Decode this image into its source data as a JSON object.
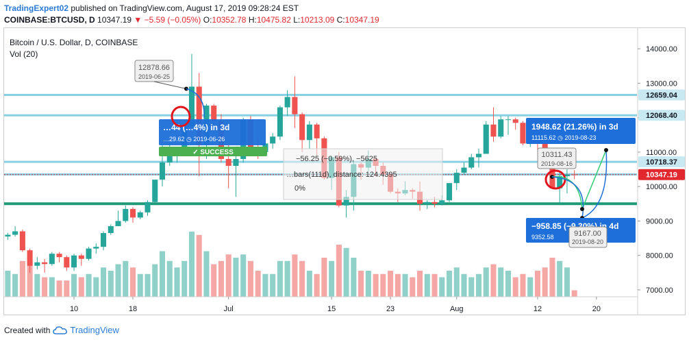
{
  "header": {
    "author": "TradingExpert02",
    "published_text": "published on TradingView.com, August 17, 2019 09:28:24 EST",
    "symbol": "COINBASE:BTCUSD, D",
    "last": "10347.19",
    "change": "−5.59 (−0.05%)",
    "o_label": "O:",
    "o": "10352.78",
    "h_label": "H:",
    "h": "10475.82",
    "l_label": "L:",
    "l": "10213.09",
    "c_label": "C:",
    "c": "10347.19"
  },
  "footer": {
    "created_with": "Created with",
    "brand": "TradingView"
  },
  "colors": {
    "up": "#26a69a",
    "down": "#ef5350",
    "vol_up": "#8fd1c9",
    "vol_down": "#f4a7a5",
    "hline": "#7ccbe0",
    "support": "#1f9a78",
    "label_blue": "#1e6fd9"
  },
  "chart_data": {
    "type": "candlestick",
    "title": "Bitcoin / U.S. Dollar, D, COINBASE",
    "volume_label": "Vol (20)",
    "ylim": [
      6800,
      14600
    ],
    "y_ticks": [
      "14000.00",
      "13000.00",
      "12000.00",
      "11000.00",
      "10000.00",
      "9000.00",
      "8000.00",
      "7000.00"
    ],
    "x_ticks": [
      {
        "label": "10",
        "date": "2019-06-10"
      },
      {
        "label": "18",
        "date": "2019-06-18"
      },
      {
        "label": "Jul",
        "date": "2019-07-01"
      },
      {
        "label": "15",
        "date": "2019-07-15"
      },
      {
        "label": "23",
        "date": "2019-07-23"
      },
      {
        "label": "Aug",
        "date": "2019-08-01"
      },
      {
        "label": "12",
        "date": "2019-08-12"
      },
      {
        "label": "20",
        "date": "2019-08-20"
      }
    ],
    "date_range": [
      "2019-06-01",
      "2019-08-25"
    ],
    "candles": [
      {
        "date": "2019-06-01",
        "o": 8550,
        "h": 8650,
        "l": 8450,
        "c": 8600
      },
      {
        "date": "2019-06-02",
        "o": 8600,
        "h": 8850,
        "l": 8550,
        "c": 8700
      },
      {
        "date": "2019-06-03",
        "o": 8700,
        "h": 8750,
        "l": 8100,
        "c": 8150
      },
      {
        "date": "2019-06-04",
        "o": 8150,
        "h": 8200,
        "l": 7500,
        "c": 7700
      },
      {
        "date": "2019-06-05",
        "o": 7700,
        "h": 7950,
        "l": 7600,
        "c": 7800
      },
      {
        "date": "2019-06-06",
        "o": 7800,
        "h": 7900,
        "l": 7500,
        "c": 7750
      },
      {
        "date": "2019-06-07",
        "o": 7750,
        "h": 8100,
        "l": 7700,
        "c": 8050
      },
      {
        "date": "2019-06-08",
        "o": 8050,
        "h": 8100,
        "l": 7800,
        "c": 7950
      },
      {
        "date": "2019-06-09",
        "o": 7950,
        "h": 8000,
        "l": 7550,
        "c": 7650
      },
      {
        "date": "2019-06-10",
        "o": 7650,
        "h": 8050,
        "l": 7550,
        "c": 8000
      },
      {
        "date": "2019-06-11",
        "o": 8000,
        "h": 8050,
        "l": 7700,
        "c": 7900
      },
      {
        "date": "2019-06-12",
        "o": 7900,
        "h": 8250,
        "l": 7850,
        "c": 8200
      },
      {
        "date": "2019-06-13",
        "o": 8200,
        "h": 8350,
        "l": 8050,
        "c": 8250
      },
      {
        "date": "2019-06-14",
        "o": 8250,
        "h": 8700,
        "l": 8150,
        "c": 8650
      },
      {
        "date": "2019-06-15",
        "o": 8650,
        "h": 8900,
        "l": 8600,
        "c": 8850
      },
      {
        "date": "2019-06-16",
        "o": 8850,
        "h": 9300,
        "l": 8850,
        "c": 9000
      },
      {
        "date": "2019-06-17",
        "o": 9000,
        "h": 9450,
        "l": 8950,
        "c": 9350
      },
      {
        "date": "2019-06-18",
        "o": 9350,
        "h": 9400,
        "l": 8950,
        "c": 9100
      },
      {
        "date": "2019-06-19",
        "o": 9100,
        "h": 9300,
        "l": 9050,
        "c": 9250
      },
      {
        "date": "2019-06-20",
        "o": 9250,
        "h": 9600,
        "l": 9150,
        "c": 9550
      },
      {
        "date": "2019-06-21",
        "o": 9550,
        "h": 10200,
        "l": 9500,
        "c": 10200
      },
      {
        "date": "2019-06-22",
        "o": 10200,
        "h": 11200,
        "l": 10000,
        "c": 10700
      },
      {
        "date": "2019-06-23",
        "o": 10700,
        "h": 11300,
        "l": 10600,
        "c": 10900
      },
      {
        "date": "2019-06-24",
        "o": 10900,
        "h": 11150,
        "l": 10700,
        "c": 11050
      },
      {
        "date": "2019-06-25",
        "o": 11050,
        "h": 11800,
        "l": 10950,
        "c": 11750
      },
      {
        "date": "2019-06-26",
        "o": 11750,
        "h": 13850,
        "l": 11700,
        "c": 12900
      },
      {
        "date": "2019-06-27",
        "o": 12900,
        "h": 13300,
        "l": 10300,
        "c": 11200
      },
      {
        "date": "2019-06-28",
        "o": 11200,
        "h": 12400,
        "l": 10800,
        "c": 12350
      },
      {
        "date": "2019-06-29",
        "o": 12350,
        "h": 12400,
        "l": 11300,
        "c": 11900
      },
      {
        "date": "2019-06-30",
        "o": 11900,
        "h": 12100,
        "l": 10700,
        "c": 10800
      },
      {
        "date": "2019-07-01",
        "o": 10800,
        "h": 11200,
        "l": 9950,
        "c": 10600
      },
      {
        "date": "2019-07-02",
        "o": 10600,
        "h": 10900,
        "l": 9700,
        "c": 10800
      },
      {
        "date": "2019-07-03",
        "o": 10800,
        "h": 12000,
        "l": 10700,
        "c": 11950
      },
      {
        "date": "2019-07-04",
        "o": 11950,
        "h": 12050,
        "l": 11050,
        "c": 11150
      },
      {
        "date": "2019-07-05",
        "o": 11150,
        "h": 11400,
        "l": 10800,
        "c": 11000
      },
      {
        "date": "2019-07-06",
        "o": 11000,
        "h": 11650,
        "l": 10900,
        "c": 11250
      },
      {
        "date": "2019-07-07",
        "o": 11250,
        "h": 11550,
        "l": 11100,
        "c": 11450
      },
      {
        "date": "2019-07-08",
        "o": 11450,
        "h": 12350,
        "l": 11350,
        "c": 12300
      },
      {
        "date": "2019-07-09",
        "o": 12300,
        "h": 12800,
        "l": 12050,
        "c": 12600
      },
      {
        "date": "2019-07-10",
        "o": 12600,
        "h": 13200,
        "l": 11700,
        "c": 12100
      },
      {
        "date": "2019-07-11",
        "o": 12100,
        "h": 12150,
        "l": 11000,
        "c": 11350
      },
      {
        "date": "2019-07-12",
        "o": 11350,
        "h": 11900,
        "l": 11100,
        "c": 11800
      },
      {
        "date": "2019-07-13",
        "o": 11800,
        "h": 11850,
        "l": 10900,
        "c": 11400
      },
      {
        "date": "2019-07-14",
        "o": 11400,
        "h": 11450,
        "l": 10200,
        "c": 10250
      },
      {
        "date": "2019-07-15",
        "o": 10250,
        "h": 10900,
        "l": 9900,
        "c": 10850
      },
      {
        "date": "2019-07-16",
        "o": 10850,
        "h": 11000,
        "l": 9400,
        "c": 9450
      },
      {
        "date": "2019-07-17",
        "o": 9450,
        "h": 9900,
        "l": 9100,
        "c": 9700
      },
      {
        "date": "2019-07-18",
        "o": 9700,
        "h": 10750,
        "l": 9300,
        "c": 10650
      },
      {
        "date": "2019-07-19",
        "o": 10650,
        "h": 10700,
        "l": 10200,
        "c": 10550
      },
      {
        "date": "2019-07-20",
        "o": 10550,
        "h": 11050,
        "l": 10450,
        "c": 10800
      },
      {
        "date": "2019-07-21",
        "o": 10800,
        "h": 10850,
        "l": 10300,
        "c": 10600
      },
      {
        "date": "2019-07-22",
        "o": 10600,
        "h": 10700,
        "l": 10050,
        "c": 10350
      },
      {
        "date": "2019-07-23",
        "o": 10350,
        "h": 10400,
        "l": 9800,
        "c": 9850
      },
      {
        "date": "2019-07-24",
        "o": 9850,
        "h": 9950,
        "l": 9550,
        "c": 9800
      },
      {
        "date": "2019-07-25",
        "o": 9800,
        "h": 10150,
        "l": 9750,
        "c": 9900
      },
      {
        "date": "2019-07-26",
        "o": 9900,
        "h": 9950,
        "l": 9650,
        "c": 9850
      },
      {
        "date": "2019-07-27",
        "o": 9850,
        "h": 10150,
        "l": 9300,
        "c": 9500
      },
      {
        "date": "2019-07-28",
        "o": 9500,
        "h": 9600,
        "l": 9350,
        "c": 9550
      },
      {
        "date": "2019-07-29",
        "o": 9550,
        "h": 9700,
        "l": 9400,
        "c": 9500
      },
      {
        "date": "2019-07-30",
        "o": 9500,
        "h": 9750,
        "l": 9450,
        "c": 9600
      },
      {
        "date": "2019-07-31",
        "o": 9600,
        "h": 10100,
        "l": 9550,
        "c": 10100
      },
      {
        "date": "2019-08-01",
        "o": 10100,
        "h": 10500,
        "l": 9900,
        "c": 10400
      },
      {
        "date": "2019-08-02",
        "o": 10400,
        "h": 10700,
        "l": 10350,
        "c": 10550
      },
      {
        "date": "2019-08-03",
        "o": 10550,
        "h": 10950,
        "l": 10500,
        "c": 10850
      },
      {
        "date": "2019-08-04",
        "o": 10850,
        "h": 11100,
        "l": 10550,
        "c": 10950
      },
      {
        "date": "2019-08-05",
        "o": 10950,
        "h": 11900,
        "l": 10950,
        "c": 11800
      },
      {
        "date": "2019-08-06",
        "o": 11800,
        "h": 12300,
        "l": 11300,
        "c": 11450
      },
      {
        "date": "2019-08-07",
        "o": 11450,
        "h": 12050,
        "l": 11400,
        "c": 11950
      },
      {
        "date": "2019-08-08",
        "o": 11950,
        "h": 12050,
        "l": 11500,
        "c": 11950
      },
      {
        "date": "2019-08-09",
        "o": 11950,
        "h": 12000,
        "l": 11650,
        "c": 11850
      },
      {
        "date": "2019-08-10",
        "o": 11850,
        "h": 11900,
        "l": 11200,
        "c": 11250
      },
      {
        "date": "2019-08-11",
        "o": 11250,
        "h": 11550,
        "l": 11150,
        "c": 11500
      },
      {
        "date": "2019-08-12",
        "o": 11500,
        "h": 11550,
        "l": 11000,
        "c": 11350
      },
      {
        "date": "2019-08-13",
        "o": 11350,
        "h": 11450,
        "l": 10750,
        "c": 10800
      },
      {
        "date": "2019-08-14",
        "o": 10800,
        "h": 10850,
        "l": 9950,
        "c": 9950
      },
      {
        "date": "2019-08-15",
        "o": 9950,
        "h": 10450,
        "l": 9500,
        "c": 10300
      },
      {
        "date": "2019-08-16",
        "o": 10300,
        "h": 10500,
        "l": 9800,
        "c": 10350
      },
      {
        "date": "2019-08-17",
        "o": 10352.78,
        "h": 10475.82,
        "l": 10213.09,
        "c": 10347.19
      }
    ],
    "volume": [
      0.4,
      0.35,
      0.55,
      0.55,
      0.35,
      0.3,
      0.3,
      0.25,
      0.25,
      0.35,
      0.3,
      0.35,
      0.3,
      0.45,
      0.4,
      0.5,
      0.55,
      0.45,
      0.35,
      0.35,
      0.5,
      0.7,
      0.55,
      0.45,
      0.55,
      1.0,
      0.95,
      0.7,
      0.5,
      0.55,
      0.65,
      0.6,
      0.65,
      0.55,
      0.4,
      0.35,
      0.35,
      0.55,
      0.55,
      0.65,
      0.55,
      0.4,
      0.35,
      0.6,
      0.55,
      0.8,
      0.75,
      0.6,
      0.4,
      0.4,
      0.35,
      0.35,
      0.4,
      0.35,
      0.35,
      0.3,
      0.4,
      0.35,
      0.35,
      0.3,
      0.4,
      0.45,
      0.35,
      0.3,
      0.35,
      0.45,
      0.5,
      0.45,
      0.4,
      0.3,
      0.35,
      0.3,
      0.4,
      0.45,
      0.6,
      0.55,
      0.45,
      0.1
    ],
    "horizontal_levels": [
      {
        "price": 12659.04,
        "label": "12659.04"
      },
      {
        "price": 12068.4,
        "label": "12068.40"
      },
      {
        "price": 10718.37,
        "label": "10718.37"
      },
      {
        "price": 10352.74,
        "label": "10352.74"
      }
    ],
    "last_price": {
      "price": 10347.19,
      "label": "10347.19"
    },
    "support_line": {
      "price": 9500
    },
    "annotations": {
      "high_price": "12878.66",
      "high_date": "2019-06-25",
      "left_gain_fragment": "…44 (…4%) in 3d",
      "left_gain_sub": "…29.62 ◷ 2019-06-26",
      "success": "✓ SUCCESS",
      "measure_text_1": "−56.25 (−0.59%), −5625",
      "measure_text_2": "…bars(111d), distance: 124.4395",
      "measure_text_3": "0%",
      "point_price": "10311.43",
      "point_date": "2019-08-16",
      "target_up_main": "1948.62 (21.26%) in 3d",
      "target_up_sub": "11115.62 ◷ 2019-08-23",
      "target_down_main": "−958.85 (−9.30%) in 4d",
      "target_down_sub": "9352.58",
      "target_down_price": "9167.00",
      "target_down_date": "2019-08-20"
    }
  }
}
